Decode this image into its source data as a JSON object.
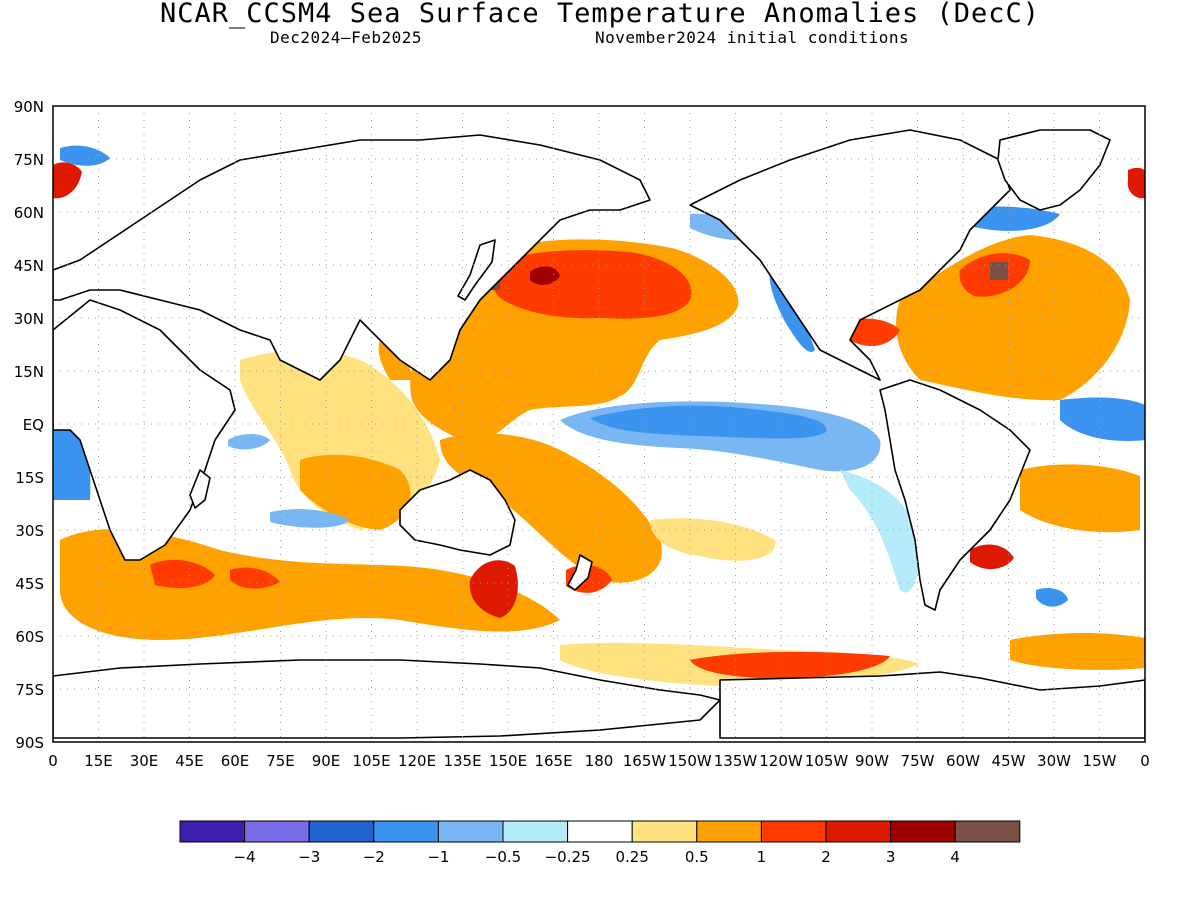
{
  "header": {
    "title": "NCAR_CCSM4 Sea Surface Temperature Anomalies (DecC)",
    "period": "Dec2024–Feb2025",
    "initial_conditions": "November2024 initial conditions"
  },
  "map": {
    "projection": "cylindrical equidistant",
    "lat_ticks": [
      "90N",
      "75N",
      "60N",
      "45N",
      "30N",
      "15N",
      "EQ",
      "15S",
      "30S",
      "45S",
      "60S",
      "75S",
      "90S"
    ],
    "lon_ticks": [
      "0",
      "15E",
      "30E",
      "45E",
      "60E",
      "75E",
      "90E",
      "105E",
      "120E",
      "135E",
      "150E",
      "165E",
      "180",
      "165W",
      "150W",
      "135W",
      "120W",
      "105W",
      "90W",
      "75W",
      "60W",
      "45W",
      "30W",
      "15W",
      "0"
    ],
    "gridlines": "dotted",
    "features": [
      "coastlines",
      "sst-anomaly-shading"
    ]
  },
  "colorbar": {
    "colors": [
      "#3c1fae",
      "#7a6be8",
      "#1f63cf",
      "#3b93f0",
      "#79b6f4",
      "#b4ecfa",
      "#ffffff",
      "#ffe27f",
      "#ffa200",
      "#ff3b00",
      "#dd1a00",
      "#a00000",
      "#7a4f45"
    ],
    "labels": [
      "−4",
      "−3",
      "−2",
      "−1",
      "−0.5",
      "−0.25",
      "0.25",
      "0.5",
      "1",
      "2",
      "3",
      "4"
    ],
    "units": "DecC"
  }
}
